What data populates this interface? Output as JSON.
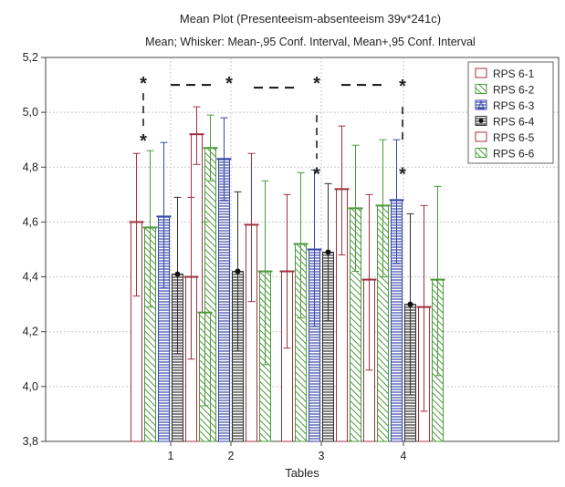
{
  "chart_data": {
    "type": "bar",
    "title": "Mean Plot (Presenteeism-absenteeism 39v*241c)",
    "subtitle": "Mean;  Whisker: Mean-,95 Conf. Interval, Mean+,95 Conf. Interval",
    "xlabel": "Tables",
    "ylabel": "",
    "categories": [
      "1",
      "2",
      "3",
      "4"
    ],
    "ylim": [
      3.8,
      5.2
    ],
    "yticks": [
      "3,8",
      "4,0",
      "4,2",
      "4,4",
      "4,6",
      "4,8",
      "5,0",
      "5,2"
    ],
    "legend_position": "top-right",
    "series": [
      {
        "name": "RPS 6-1",
        "color": "#a03040",
        "pattern": "empty",
        "values": [
          4.6,
          4.92,
          4.42,
          4.39
        ],
        "ci_low": [
          4.33,
          4.81,
          4.14,
          4.06
        ],
        "ci_high": [
          4.85,
          5.02,
          4.7,
          4.7
        ]
      },
      {
        "name": "RPS 6-2",
        "color": "#4c9a3c",
        "pattern": "diag",
        "values": [
          4.58,
          4.87,
          4.52,
          4.66
        ],
        "ci_low": [
          4.29,
          4.75,
          4.25,
          4.4
        ],
        "ci_high": [
          4.86,
          4.99,
          4.78,
          4.9
        ]
      },
      {
        "name": "RPS 6-3",
        "color": "#3848a8",
        "pattern": "hlines",
        "values": [
          4.62,
          4.83,
          4.5,
          4.68
        ],
        "ci_low": [
          4.36,
          4.68,
          4.22,
          4.45
        ],
        "ci_high": [
          4.89,
          4.98,
          4.79,
          4.9
        ]
      },
      {
        "name": "RPS 6-4",
        "color": "#303030",
        "pattern": "hlines",
        "values": [
          4.41,
          4.42,
          4.49,
          4.3
        ],
        "ci_low": [
          4.12,
          4.13,
          4.24,
          3.97
        ],
        "ci_high": [
          4.69,
          4.71,
          4.74,
          4.63
        ]
      },
      {
        "name": "RPS 6-5",
        "color": "#a03040",
        "pattern": "empty",
        "values": [
          4.4,
          4.59,
          4.72,
          4.29
        ],
        "ci_low": [
          4.1,
          4.31,
          4.48,
          3.91
        ],
        "ci_high": [
          4.69,
          4.85,
          4.95,
          4.66
        ]
      },
      {
        "name": "RPS 6-6",
        "color": "#4c9a3c",
        "pattern": "diag",
        "values": [
          4.27,
          4.42,
          4.65,
          4.39
        ],
        "ci_low": [
          3.93,
          4.08,
          4.42,
          4.04
        ],
        "ci_high": [
          4.6,
          4.75,
          4.88,
          4.73
        ]
      }
    ],
    "annotations": [
      {
        "text": "*",
        "x": 1,
        "y": 5.11
      },
      {
        "text": "*",
        "x": 1,
        "y": 4.9
      },
      {
        "text": "*",
        "x": 2,
        "y": 5.11
      },
      {
        "text": "*",
        "x": 3,
        "y": 5.11
      },
      {
        "text": "*",
        "x": 3,
        "y": 4.78
      },
      {
        "text": "*",
        "x": 4,
        "y": 5.1
      },
      {
        "text": "*",
        "x": 4,
        "y": 4.78
      }
    ]
  }
}
